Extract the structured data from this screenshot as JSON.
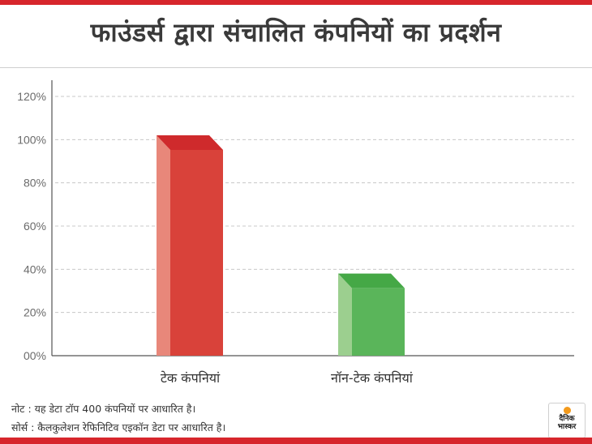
{
  "title": "फाउंडर्स द्वारा संचालित कंपनियों का प्रदर्शन",
  "chart_data": {
    "type": "bar",
    "categories": [
      "टेक कंपनियां",
      "नॉन-टेक कंपनियां"
    ],
    "values": [
      102,
      38
    ],
    "ylim": [
      0,
      120
    ],
    "yticks": [
      "00%",
      "20%",
      "40%",
      "60%",
      "80%",
      "100%",
      "120%"
    ],
    "grid": true,
    "colors": {
      "tech_front": "#d9423a",
      "tech_side": "#e8877a",
      "tech_top": "#cf2a2c",
      "nontech_front": "#5ab55a",
      "nontech_side": "#9ccf8f",
      "nontech_top": "#45a846"
    }
  },
  "footer": {
    "note": "नोट : यह डेटा टॉप 400 कंपनियों पर आधारित है।",
    "source": "सोर्स : कैलकुलेशन रेफिनिटिव एइकॉन डेटा पर आधारित है।"
  },
  "logo": {
    "line1": "दैनिक",
    "line2": "भास्कर"
  }
}
